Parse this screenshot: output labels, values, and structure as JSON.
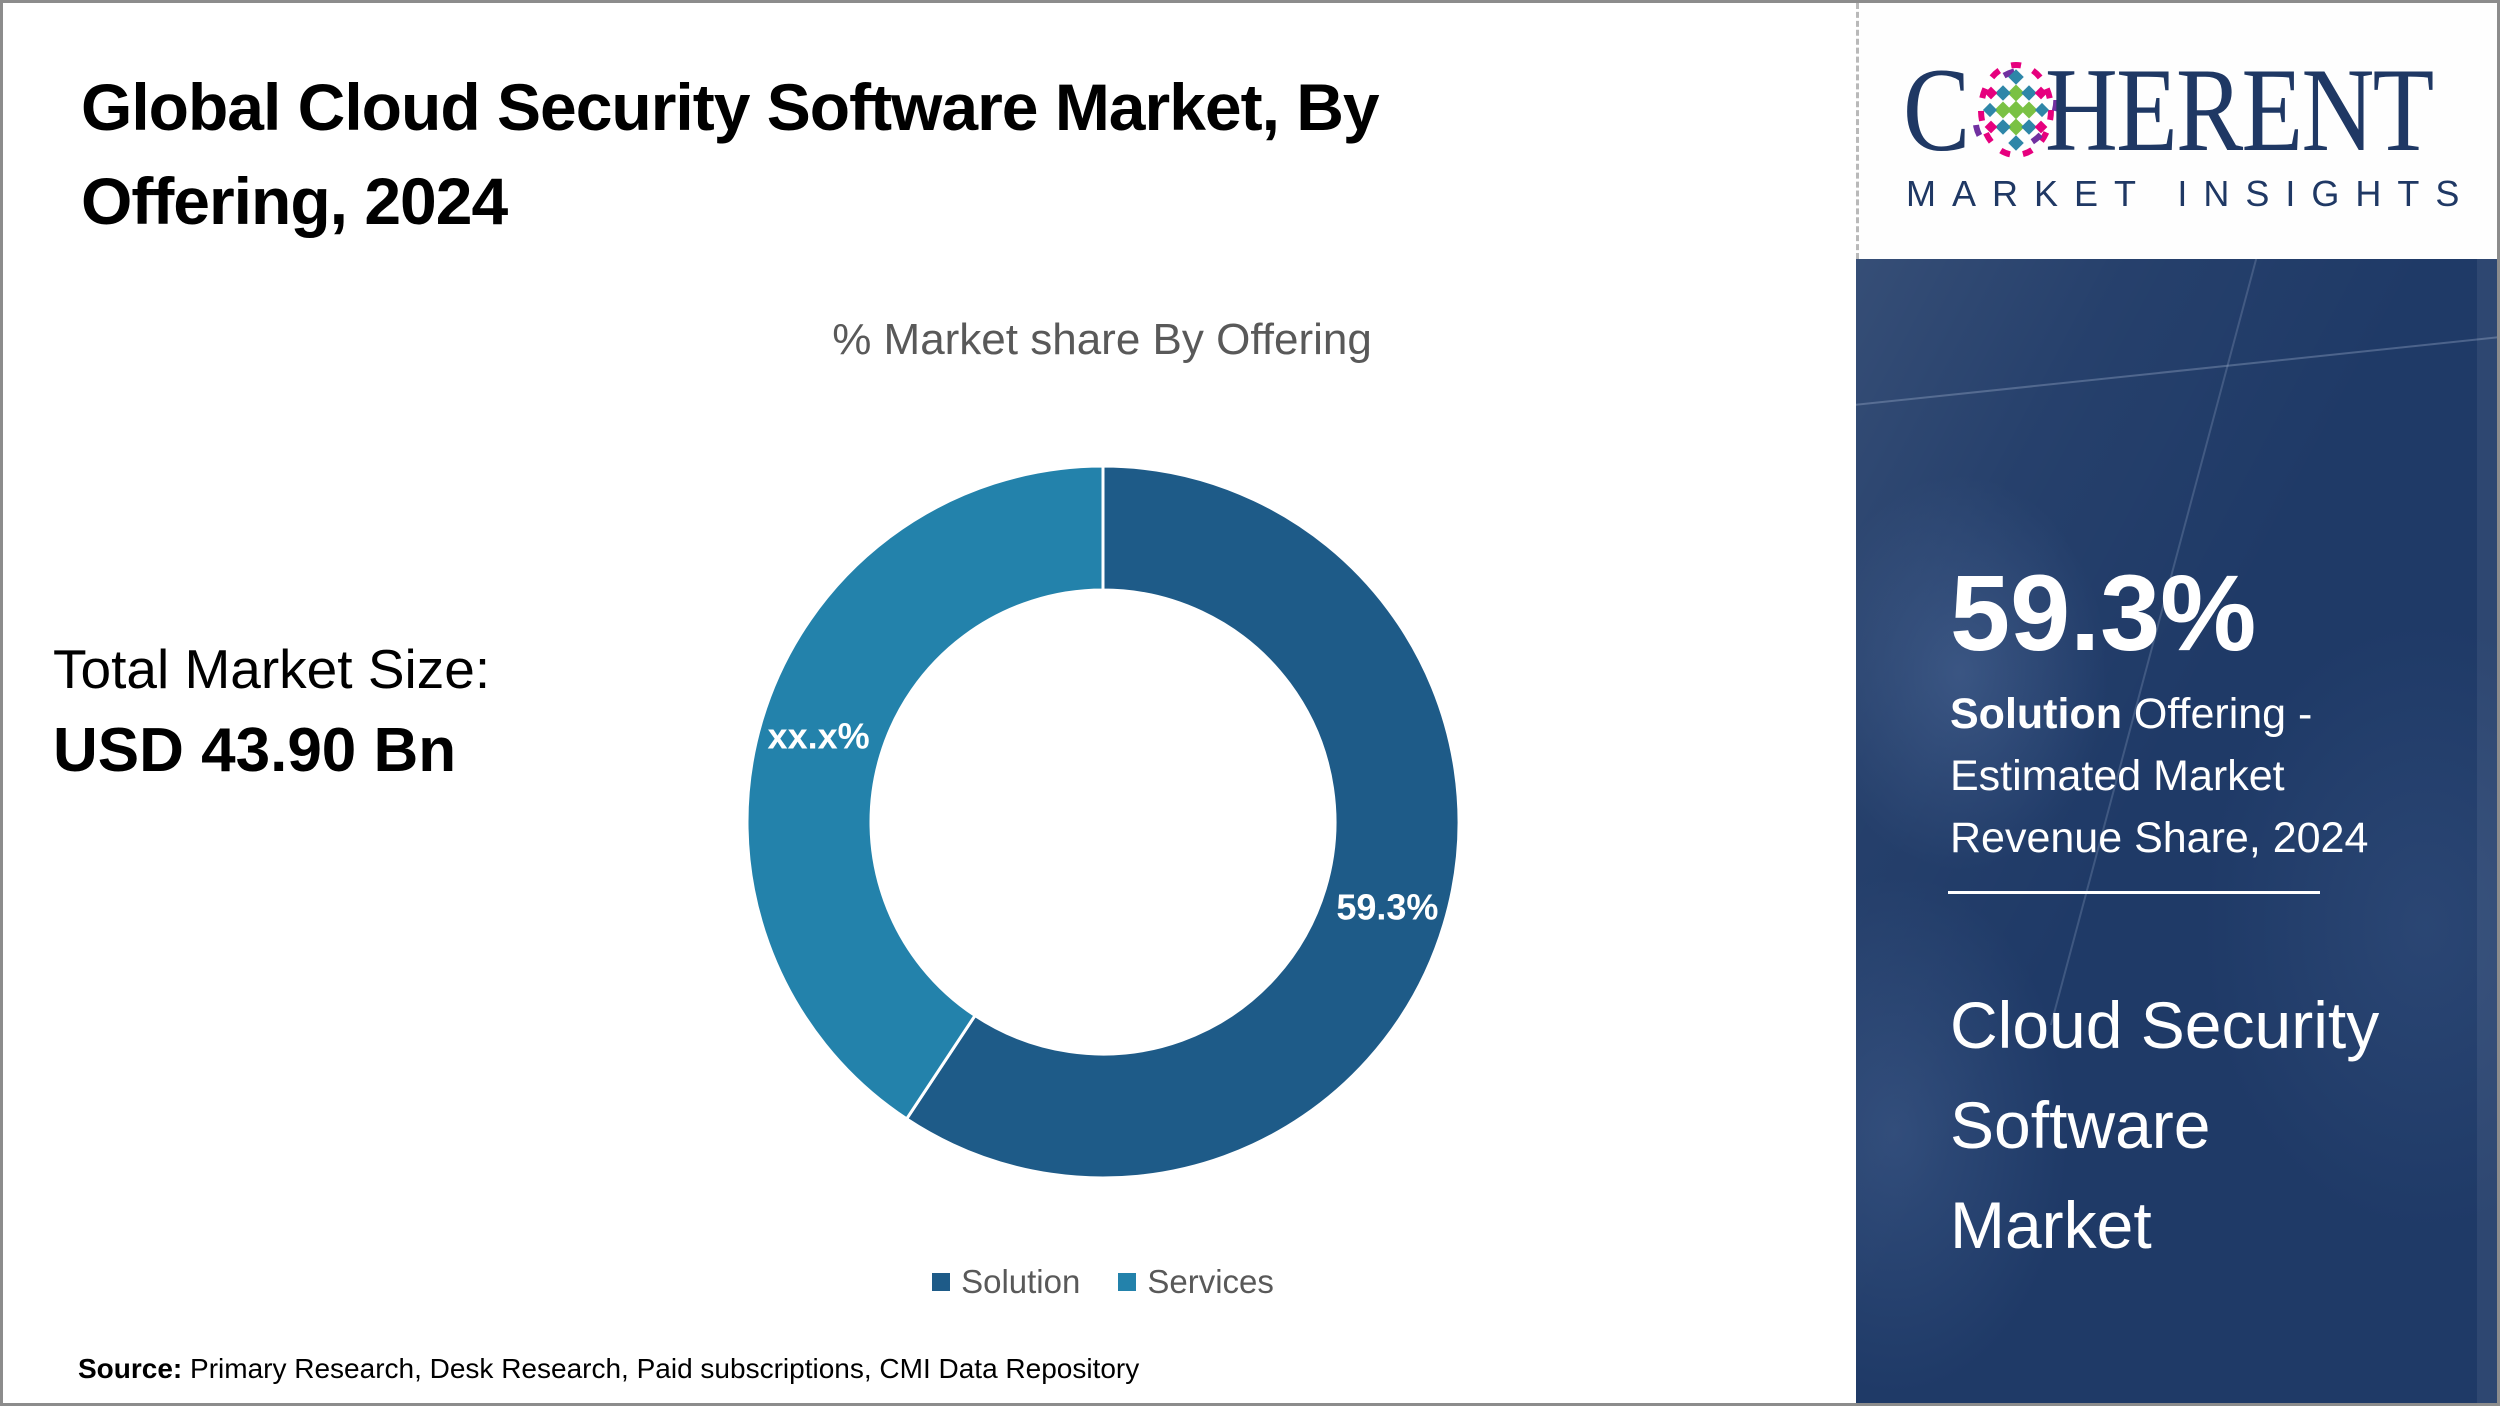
{
  "header": {
    "title_line1": "Global Cloud Security Software Market, By",
    "title_line2": "Offering, 2024",
    "subtitle": "% Market share By Offering"
  },
  "summary": {
    "label": "Total Market Size:",
    "value": "USD 43.90 Bn"
  },
  "chart_data": {
    "type": "pie",
    "subtype": "donut",
    "title": "% Market share By Offering",
    "start_angle_deg": 0,
    "direction": "clockwise",
    "inner_radius_ratio": 0.65,
    "segments": [
      {
        "name": "Solution",
        "value_pct": 59.3,
        "label": "59.3%",
        "color": "#1e5b88"
      },
      {
        "name": "Services",
        "value_pct": 40.7,
        "label": "xx.x%",
        "color": "#2382ab"
      }
    ],
    "legend_position": "bottom"
  },
  "source": {
    "prefix": "Source:",
    "text": " Primary Research, Desk Research, Paid subscriptions, CMI Data Repository"
  },
  "brand": {
    "word_start": "C",
    "word_end": "HERENT",
    "tagline": "MARKET INSIGHTS",
    "color": "#1f3864"
  },
  "sidebar": {
    "background": "#1f3a67",
    "stat_value": "59.3%",
    "stat_bold": "Solution",
    "stat_rest": " Offering - Estimated Market Revenue Share, 2024",
    "market_name": "Cloud Security Software Market"
  }
}
